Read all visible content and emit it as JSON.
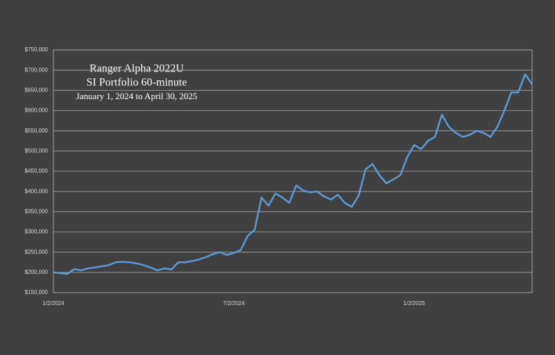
{
  "chart_data": {
    "type": "line",
    "title": [
      "Ranger Alpha 2022U",
      "SI Portfolio 60-minute"
    ],
    "subtitle": "January 1, 2024 to April 30, 2025",
    "categories": [
      "1/2/2024",
      null,
      null,
      null,
      null,
      null,
      null,
      null,
      null,
      null,
      null,
      null,
      null,
      null,
      null,
      null,
      null,
      null,
      null,
      null,
      null,
      null,
      null,
      null,
      null,
      null,
      "7/2/2024",
      null,
      null,
      null,
      null,
      null,
      null,
      null,
      null,
      null,
      null,
      null,
      null,
      null,
      null,
      null,
      null,
      null,
      null,
      null,
      null,
      null,
      null,
      null,
      null,
      null,
      "1/2/2025",
      null,
      null,
      null,
      null,
      null,
      null,
      null,
      null,
      null,
      null,
      null,
      null,
      null,
      null,
      null,
      null,
      null
    ],
    "series": [
      {
        "color": "#5b9bd5",
        "values": [
          200000,
          198000,
          196000,
          208000,
          205000,
          210000,
          212000,
          215000,
          218000,
          225000,
          226000,
          225000,
          222000,
          218000,
          212000,
          205000,
          210000,
          207000,
          225000,
          225000,
          228000,
          232000,
          238000,
          245000,
          250000,
          243000,
          248000,
          255000,
          290000,
          305000,
          385000,
          365000,
          395000,
          385000,
          372000,
          415000,
          402000,
          398000,
          400000,
          388000,
          380000,
          392000,
          372000,
          362000,
          390000,
          455000,
          468000,
          440000,
          420000,
          430000,
          440000,
          485000,
          515000,
          505000,
          525000,
          535000,
          590000,
          560000,
          545000,
          535000,
          540000,
          550000,
          545000,
          535000,
          560000,
          600000,
          645000,
          645000,
          690000,
          665000
        ]
      }
    ],
    "ylim": [
      150000,
      750000
    ],
    "yticks": [
      {
        "value": 150000,
        "label": "$150,000"
      },
      {
        "value": 200000,
        "label": "$200,000"
      },
      {
        "value": 250000,
        "label": "$250,000"
      },
      {
        "value": 300000,
        "label": "$300,000"
      },
      {
        "value": 350000,
        "label": "$350,000"
      },
      {
        "value": 400000,
        "label": "$400,000"
      },
      {
        "value": 450000,
        "label": "$450,000"
      },
      {
        "value": 500000,
        "label": "$500,000"
      },
      {
        "value": 550000,
        "label": "$550,000"
      },
      {
        "value": 600000,
        "label": "$600,000"
      },
      {
        "value": 650000,
        "label": "$650,000"
      },
      {
        "value": 700000,
        "label": "$700,000"
      },
      {
        "value": 750000,
        "label": "$750,000"
      }
    ],
    "grid": true
  }
}
